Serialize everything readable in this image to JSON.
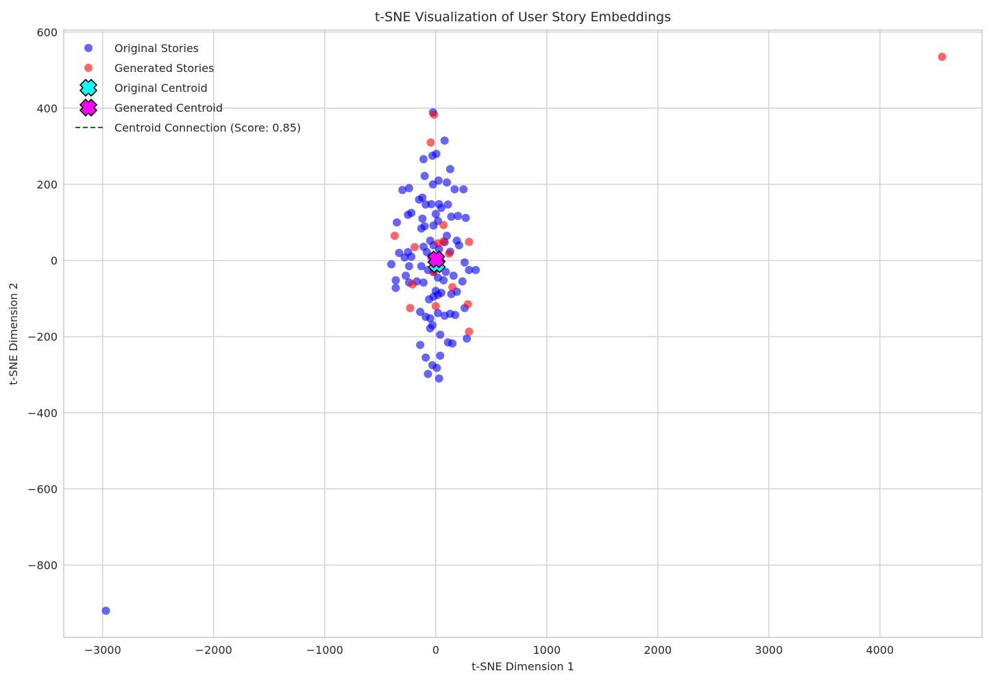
{
  "chart_data": {
    "type": "scatter",
    "title": "t-SNE Visualization of User Story Embeddings",
    "xlabel": "t-SNE Dimension 1",
    "ylabel": "t-SNE Dimension 2",
    "xlim": [
      -3350,
      4920
    ],
    "ylim": [
      -990,
      605
    ],
    "xticks": [
      -3000,
      -2000,
      -1000,
      0,
      1000,
      2000,
      3000,
      4000
    ],
    "yticks": [
      -800,
      -600,
      -400,
      -200,
      0,
      200,
      400,
      600
    ],
    "tick_labels_x": [
      "−3000",
      "−2000",
      "−1000",
      "0",
      "1000",
      "2000",
      "3000",
      "4000"
    ],
    "tick_labels_y": [
      "−800",
      "−600",
      "−400",
      "−200",
      "0",
      "200",
      "400",
      "600"
    ],
    "grid": true,
    "legend_position": "top-left",
    "series": [
      {
        "name": "Original Stories",
        "color": "#0000ff",
        "marker": "circle",
        "points": [
          [
            -2970,
            -920
          ],
          [
            -25,
            389
          ],
          [
            -30,
            275
          ],
          [
            5,
            280
          ],
          [
            -110,
            266
          ],
          [
            80,
            315
          ],
          [
            130,
            240
          ],
          [
            -300,
            185
          ],
          [
            -240,
            190
          ],
          [
            -100,
            222
          ],
          [
            -25,
            200
          ],
          [
            25,
            210
          ],
          [
            100,
            205
          ],
          [
            170,
            187
          ],
          [
            250,
            187
          ],
          [
            -150,
            160
          ],
          [
            -120,
            165
          ],
          [
            -90,
            147
          ],
          [
            -40,
            148
          ],
          [
            30,
            148
          ],
          [
            50,
            138
          ],
          [
            110,
            147
          ],
          [
            -250,
            120
          ],
          [
            -220,
            125
          ],
          [
            -120,
            110
          ],
          [
            0,
            122
          ],
          [
            140,
            115
          ],
          [
            200,
            117
          ],
          [
            270,
            112
          ],
          [
            -350,
            100
          ],
          [
            -100,
            90
          ],
          [
            -20,
            92
          ],
          [
            20,
            104
          ],
          [
            -130,
            84
          ],
          [
            100,
            65
          ],
          [
            -50,
            52
          ],
          [
            80,
            48
          ],
          [
            190,
            52
          ],
          [
            210,
            40
          ],
          [
            130,
            23
          ],
          [
            -110,
            36
          ],
          [
            -20,
            40
          ],
          [
            30,
            30
          ],
          [
            -330,
            20
          ],
          [
            -250,
            22
          ],
          [
            -220,
            10
          ],
          [
            -280,
            8
          ],
          [
            -80,
            22
          ],
          [
            -40,
            10
          ],
          [
            -400,
            -10
          ],
          [
            -240,
            -15
          ],
          [
            -130,
            -15
          ],
          [
            -70,
            -25
          ],
          [
            -20,
            -30
          ],
          [
            30,
            -20
          ],
          [
            90,
            -30
          ],
          [
            260,
            -5
          ],
          [
            300,
            -25
          ],
          [
            360,
            -25
          ],
          [
            -270,
            -40
          ],
          [
            -360,
            -52
          ],
          [
            -240,
            -58
          ],
          [
            -170,
            -55
          ],
          [
            -110,
            -58
          ],
          [
            20,
            -45
          ],
          [
            70,
            -52
          ],
          [
            160,
            -40
          ],
          [
            240,
            -55
          ],
          [
            -360,
            -72
          ],
          [
            0,
            -80
          ],
          [
            50,
            -85
          ],
          [
            140,
            -88
          ],
          [
            190,
            -82
          ],
          [
            -20,
            -95
          ],
          [
            20,
            -90
          ],
          [
            -60,
            -102
          ],
          [
            -140,
            -135
          ],
          [
            -90,
            -148
          ],
          [
            -50,
            -152
          ],
          [
            20,
            -138
          ],
          [
            80,
            -145
          ],
          [
            130,
            -140
          ],
          [
            175,
            -143
          ],
          [
            260,
            -125
          ],
          [
            -30,
            -170
          ],
          [
            -50,
            -178
          ],
          [
            40,
            -195
          ],
          [
            280,
            -205
          ],
          [
            -140,
            -222
          ],
          [
            110,
            -215
          ],
          [
            150,
            -218
          ],
          [
            40,
            -250
          ],
          [
            -90,
            -255
          ],
          [
            -30,
            -275
          ],
          [
            10,
            -282
          ],
          [
            -70,
            -298
          ],
          [
            30,
            -310
          ]
        ]
      },
      {
        "name": "Generated Stories",
        "color": "#ff0000",
        "marker": "circle",
        "points": [
          [
            4560,
            535
          ],
          [
            -15,
            383
          ],
          [
            -45,
            310
          ],
          [
            70,
            93
          ],
          [
            -370,
            65
          ],
          [
            300,
            49
          ],
          [
            -190,
            35
          ],
          [
            20,
            45
          ],
          [
            70,
            50
          ],
          [
            120,
            18
          ],
          [
            -20,
            -30
          ],
          [
            -210,
            -63
          ],
          [
            150,
            -70
          ],
          [
            -230,
            -125
          ],
          [
            0,
            -120
          ],
          [
            290,
            -115
          ],
          [
            300,
            -187
          ]
        ]
      }
    ],
    "centroids": [
      {
        "name": "Original Centroid",
        "x": 10,
        "y": -10,
        "color": "#00ffff",
        "marker": "X"
      },
      {
        "name": "Generated Centroid",
        "x": 5,
        "y": 3,
        "color": "#ff00ff",
        "marker": "X"
      }
    ],
    "connection": {
      "name": "Centroid Connection (Score: 0.85)",
      "color": "#008000",
      "style": "dashed"
    },
    "legend": [
      {
        "label": "Original Stories",
        "kind": "dot",
        "color": "#0000ff"
      },
      {
        "label": "Generated Stories",
        "kind": "dot",
        "color": "#ff0000"
      },
      {
        "label": "Original Centroid",
        "kind": "x",
        "color": "#00ffff"
      },
      {
        "label": "Generated Centroid",
        "kind": "x",
        "color": "#ff00ff"
      },
      {
        "label": "Centroid Connection (Score: 0.85)",
        "kind": "line",
        "color": "#008000"
      }
    ]
  }
}
